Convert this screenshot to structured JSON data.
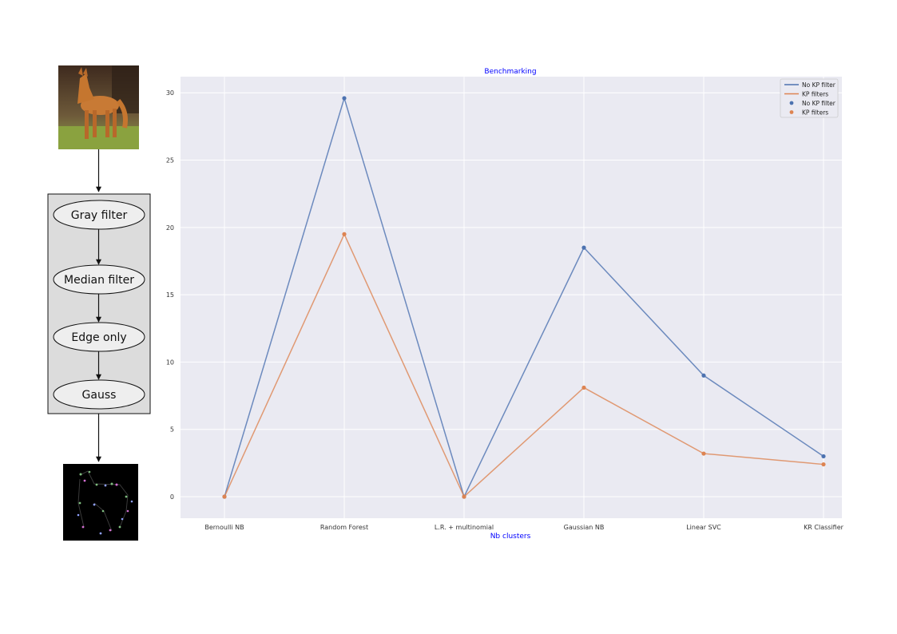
{
  "pipeline": {
    "steps": [
      "Gray filter",
      "Median filter",
      "Edge only",
      "Gauss"
    ],
    "input_image": "photo of a dog standing on grass",
    "output_image": "black image with scattered colored keypoints along dog edges",
    "colors": {
      "box_fill": "#dcdcdc",
      "ellipse_fill": "#eeeeee",
      "stroke": "#111111"
    }
  },
  "chart_data": {
    "type": "line",
    "title": "Benchmarking",
    "xlabel": "Nb clusters",
    "ylabel": "",
    "categories": [
      "Bernoulli NB",
      "Random Forest",
      "L.R. + multinomial",
      "Gaussian NB",
      "Linear SVC",
      "KR Classifier"
    ],
    "series": [
      {
        "name": "No KP filter",
        "values": [
          0,
          29.6,
          0,
          18.5,
          9.0,
          3.0
        ],
        "color": "#4c72b0"
      },
      {
        "name": "KP filters",
        "values": [
          0,
          19.5,
          0,
          8.1,
          3.2,
          2.4
        ],
        "color": "#dd8452"
      }
    ],
    "legend_entries": [
      {
        "label": "No KP filter",
        "kind": "line",
        "color": "#4c72b0"
      },
      {
        "label": "KP filters",
        "kind": "line",
        "color": "#dd8452"
      },
      {
        "label": "No KP filter",
        "kind": "marker",
        "color": "#4c72b0"
      },
      {
        "label": "KP filters",
        "kind": "marker",
        "color": "#dd8452"
      }
    ],
    "yticks": [
      0,
      5,
      10,
      15,
      20,
      25,
      30
    ],
    "ylim": [
      -1.6,
      31.2
    ],
    "grid": true,
    "legend_position": "top-right",
    "colors": {
      "plot_background": "#eaeaf2",
      "grid": "#ffffff",
      "title_color": "#0000ff",
      "tick_color": "#333333"
    }
  }
}
